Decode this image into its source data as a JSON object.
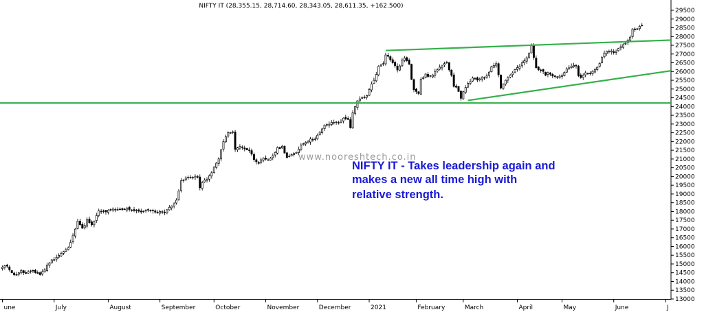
{
  "chart_data": {
    "type": "candlestick",
    "title": "NIFTY IT (28,355.15, 28,714.60, 28,343.05, 28,611.35, +162.500)",
    "watermark": "www.nooreshtech.co.in",
    "annotation": [
      "NIFTY IT - Takes leadership again and",
      "makes a new all time high with",
      "relative strength."
    ],
    "ylim": [
      13000,
      29750
    ],
    "yticks": [
      13000,
      13500,
      14000,
      14500,
      15000,
      15500,
      16000,
      16500,
      17000,
      17500,
      18000,
      18500,
      19000,
      19500,
      20000,
      20500,
      21000,
      21500,
      22000,
      22500,
      23000,
      23500,
      24000,
      24500,
      25000,
      25500,
      26000,
      26500,
      27000,
      27500,
      28000,
      28500,
      29000,
      29500
    ],
    "months": [
      {
        "label": "une",
        "day": 0
      },
      {
        "label": "July",
        "day": 22
      },
      {
        "label": "August",
        "day": 45
      },
      {
        "label": "September",
        "day": 67
      },
      {
        "label": "October",
        "day": 90
      },
      {
        "label": "November",
        "day": 112
      },
      {
        "label": "December",
        "day": 134
      },
      {
        "label": "2021",
        "day": 156
      },
      {
        "label": "February",
        "day": 176
      },
      {
        "label": "March",
        "day": 196
      },
      {
        "label": "April",
        "day": 219
      },
      {
        "label": "May",
        "day": 238
      },
      {
        "label": "June",
        "day": 260
      },
      {
        "label": "J",
        "day": 282
      }
    ],
    "close_path": [
      [
        0,
        14800
      ],
      [
        2,
        14900
      ],
      [
        5,
        14350
      ],
      [
        8,
        14600
      ],
      [
        10,
        14450
      ],
      [
        13,
        14600
      ],
      [
        16,
        14400
      ],
      [
        18,
        14700
      ],
      [
        20,
        15100
      ],
      [
        23,
        15400
      ],
      [
        26,
        15700
      ],
      [
        28,
        15900
      ],
      [
        30,
        16600
      ],
      [
        32,
        17500
      ],
      [
        34,
        17000
      ],
      [
        36,
        17500
      ],
      [
        38,
        17200
      ],
      [
        41,
        18000
      ],
      [
        44,
        18000
      ],
      [
        47,
        18100
      ],
      [
        50,
        18100
      ],
      [
        53,
        18200
      ],
      [
        56,
        18050
      ],
      [
        60,
        18000
      ],
      [
        63,
        18100
      ],
      [
        66,
        17950
      ],
      [
        69,
        18000
      ],
      [
        72,
        18300
      ],
      [
        74,
        18700
      ],
      [
        76,
        19700
      ],
      [
        78,
        19900
      ],
      [
        81,
        20000
      ],
      [
        83,
        20000
      ],
      [
        84,
        19300
      ],
      [
        85,
        19700
      ],
      [
        87,
        19800
      ],
      [
        90,
        20500
      ],
      [
        92,
        21000
      ],
      [
        94,
        22000
      ],
      [
        96,
        22500
      ],
      [
        98,
        22500
      ],
      [
        99,
        21600
      ],
      [
        101,
        21700
      ],
      [
        103,
        21600
      ],
      [
        105,
        21500
      ],
      [
        107,
        21000
      ],
      [
        109,
        20800
      ],
      [
        111,
        21000
      ],
      [
        113,
        20900
      ],
      [
        115,
        21200
      ],
      [
        117,
        21600
      ],
      [
        119,
        21700
      ],
      [
        121,
        21100
      ],
      [
        123,
        21200
      ],
      [
        125,
        21400
      ],
      [
        127,
        21800
      ],
      [
        129,
        22000
      ],
      [
        131,
        22100
      ],
      [
        133,
        22200
      ],
      [
        135,
        22500
      ],
      [
        137,
        22900
      ],
      [
        139,
        23000
      ],
      [
        141,
        23100
      ],
      [
        143,
        23100
      ],
      [
        145,
        23300
      ],
      [
        147,
        23300
      ],
      [
        148,
        22800
      ],
      [
        149,
        23600
      ],
      [
        151,
        24300
      ],
      [
        153,
        24500
      ],
      [
        155,
        24600
      ],
      [
        157,
        25300
      ],
      [
        159,
        25800
      ],
      [
        160,
        26300
      ],
      [
        162,
        26500
      ],
      [
        163,
        27000
      ],
      [
        165,
        26700
      ],
      [
        167,
        26300
      ],
      [
        168,
        26100
      ],
      [
        170,
        26600
      ],
      [
        171,
        26800
      ],
      [
        173,
        26400
      ],
      [
        174,
        25500
      ],
      [
        175,
        25000
      ],
      [
        177,
        24800
      ],
      [
        178,
        25600
      ],
      [
        180,
        25800
      ],
      [
        182,
        25700
      ],
      [
        184,
        26000
      ],
      [
        186,
        26200
      ],
      [
        188,
        26400
      ],
      [
        189,
        26500
      ],
      [
        191,
        25800
      ],
      [
        192,
        25200
      ],
      [
        194,
        24900
      ],
      [
        195,
        24500
      ],
      [
        196,
        24800
      ],
      [
        198,
        25300
      ],
      [
        200,
        25600
      ],
      [
        202,
        25500
      ],
      [
        204,
        25700
      ],
      [
        206,
        25700
      ],
      [
        208,
        26300
      ],
      [
        210,
        26500
      ],
      [
        211,
        25800
      ],
      [
        212,
        25100
      ],
      [
        214,
        25500
      ],
      [
        216,
        25800
      ],
      [
        218,
        26100
      ],
      [
        220,
        26300
      ],
      [
        222,
        26600
      ],
      [
        224,
        27000
      ],
      [
        225,
        27500
      ],
      [
        226,
        26800
      ],
      [
        227,
        26200
      ],
      [
        229,
        26100
      ],
      [
        231,
        25800
      ],
      [
        232,
        26000
      ],
      [
        234,
        25800
      ],
      [
        236,
        25700
      ],
      [
        238,
        25800
      ],
      [
        240,
        26100
      ],
      [
        242,
        26300
      ],
      [
        244,
        26300
      ],
      [
        245,
        25800
      ],
      [
        246,
        25600
      ],
      [
        248,
        25900
      ],
      [
        250,
        25900
      ],
      [
        252,
        26100
      ],
      [
        254,
        26500
      ],
      [
        256,
        27000
      ],
      [
        258,
        27200
      ],
      [
        260,
        27100
      ],
      [
        262,
        27300
      ],
      [
        264,
        27500
      ],
      [
        266,
        27800
      ],
      [
        267,
        28000
      ],
      [
        268,
        28400
      ],
      [
        270,
        28500
      ],
      [
        272,
        28600
      ]
    ],
    "lines": [
      {
        "name": "support-line",
        "color": "#34b04a",
        "points": [
          [
            -5,
            24200
          ],
          [
            305,
            24200
          ]
        ]
      },
      {
        "name": "upper-trendline",
        "color": "#34b04a",
        "points": [
          [
            163,
            27200
          ],
          [
            305,
            27900
          ]
        ]
      },
      {
        "name": "lower-trendline",
        "color": "#34b04a",
        "points": [
          [
            198,
            24350
          ],
          [
            305,
            26450
          ]
        ]
      }
    ]
  }
}
